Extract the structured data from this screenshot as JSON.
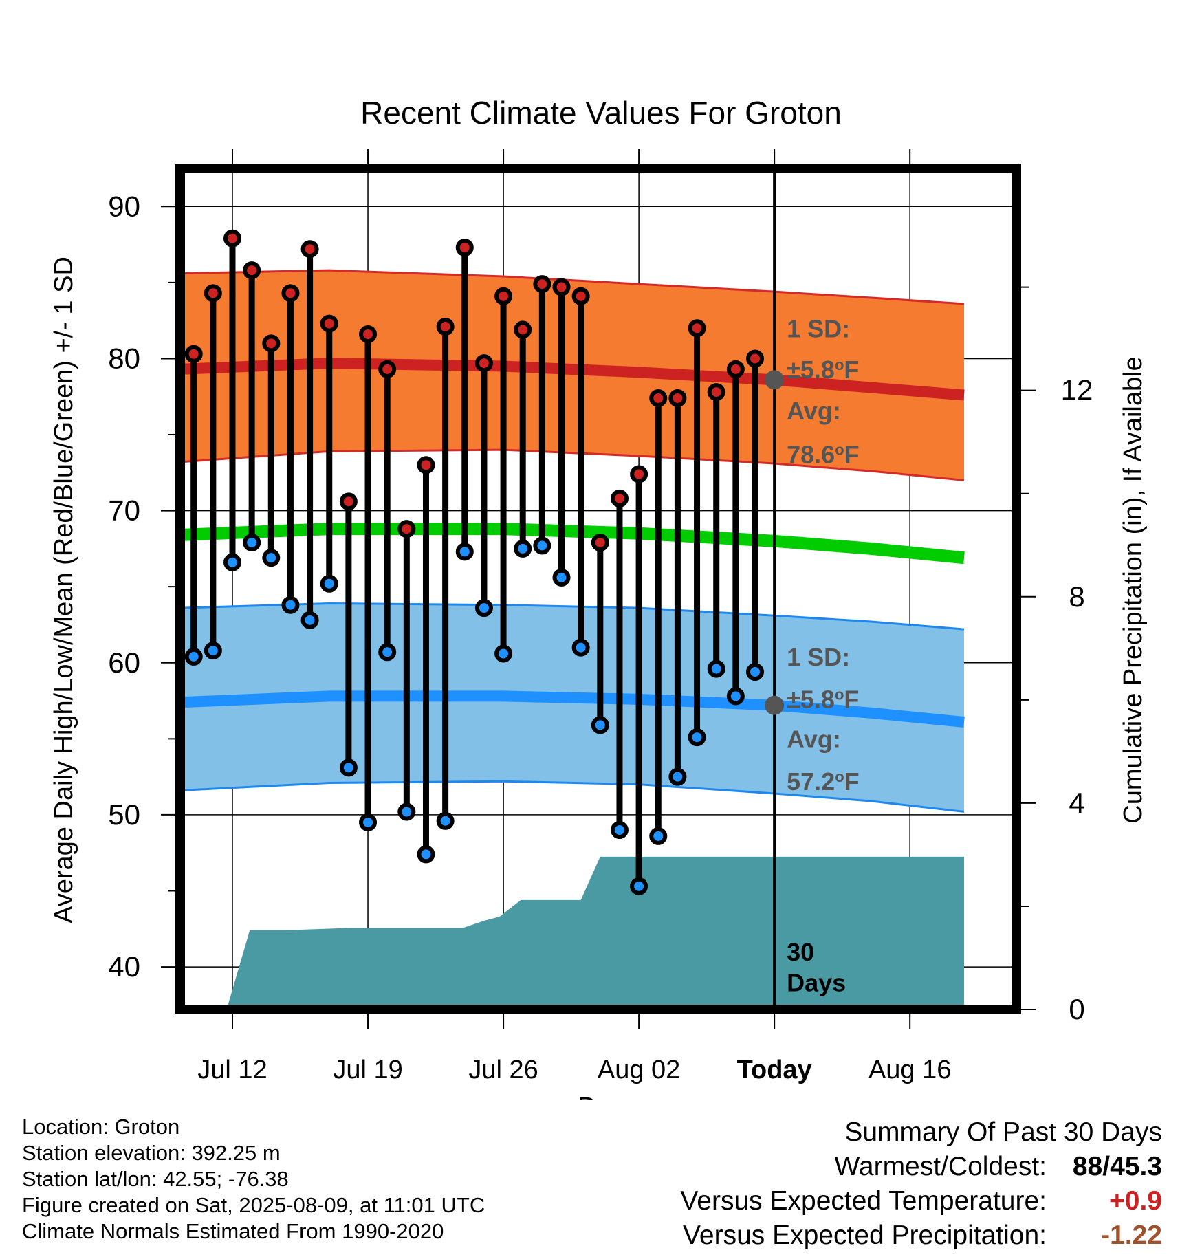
{
  "chart_data": {
    "type": "line",
    "title": "Recent Climate Values For Groton",
    "xlabel": "Day",
    "ylabel": "Average Daily High/Low/Mean (Red/Blue/Green) +/- 1 SD",
    "y2label": "Cumulative Precipitation (in), If Available",
    "ylim": [
      37.2,
      92.5
    ],
    "y2lim": [
      0,
      16.3
    ],
    "xlim": [
      -30.7,
      12.5
    ],
    "yticks": [
      40,
      50,
      60,
      70,
      80,
      90
    ],
    "y2ticks": [
      0,
      4,
      8,
      12
    ],
    "xticks": [
      {
        "day": -28,
        "label": "Jul 12"
      },
      {
        "day": -21,
        "label": "Jul 19"
      },
      {
        "day": -14,
        "label": "Jul 26"
      },
      {
        "day": -7,
        "label": "Aug 02"
      },
      {
        "day": 0,
        "label": "Today"
      },
      {
        "day": 7,
        "label": "Aug 16"
      }
    ],
    "colors": {
      "high_dot": "#cc2222",
      "low_dot": "#1e90ff",
      "high_band": "#f47b30",
      "high_band_edge": "#d42a28",
      "low_band": "#82c0e8",
      "low_band_edge": "#1e88ee",
      "mean_line": "#00cc00",
      "precip": "#4a9aa4",
      "stems": "#000000",
      "annotation": "#555555"
    },
    "days": [
      -30,
      -29,
      -28,
      -27,
      -26,
      -25,
      -24,
      -23,
      -22,
      -21,
      -20,
      -19,
      -18,
      -17,
      -16,
      -15,
      -14,
      -13,
      -12,
      -11,
      -10,
      -9,
      -8,
      -7,
      -6,
      -5,
      -4,
      -3,
      -2,
      -1
    ],
    "highs": [
      80.3,
      84.3,
      87.9,
      85.8,
      81.0,
      84.3,
      87.2,
      82.3,
      70.6,
      81.6,
      79.3,
      68.8,
      73.0,
      82.1,
      87.3,
      79.7,
      84.1,
      81.9,
      84.9,
      84.7,
      84.1,
      67.9,
      70.8,
      72.4,
      77.4,
      77.4,
      82.0,
      77.8,
      79.3,
      80.0
    ],
    "lows": [
      60.4,
      60.8,
      66.6,
      67.9,
      66.9,
      63.8,
      62.8,
      65.2,
      53.1,
      49.5,
      60.7,
      50.2,
      47.4,
      49.6,
      67.3,
      63.6,
      60.6,
      67.5,
      67.7,
      65.6,
      61.0,
      55.9,
      49.0,
      45.3,
      48.6,
      52.5,
      55.1,
      59.6,
      57.8,
      59.4
    ],
    "normals": {
      "days": [
        -30.7,
        -23,
        -14,
        -7,
        0,
        5,
        9.8
      ],
      "avg_high": [
        79.3,
        79.7,
        79.5,
        79.1,
        78.6,
        78.1,
        77.6
      ],
      "high_upper": [
        85.6,
        85.8,
        85.4,
        84.9,
        84.4,
        84.0,
        83.6
      ],
      "high_lower": [
        73.2,
        73.9,
        74.0,
        73.6,
        73.1,
        72.6,
        72.0
      ],
      "avg_low": [
        57.4,
        57.8,
        57.8,
        57.6,
        57.2,
        56.7,
        56.1
      ],
      "low_upper": [
        63.6,
        63.9,
        63.8,
        63.6,
        63.1,
        62.7,
        62.2
      ],
      "low_lower": [
        51.6,
        52.1,
        52.2,
        52.0,
        51.4,
        50.9,
        50.2
      ],
      "mean": [
        68.4,
        68.8,
        68.8,
        68.5,
        68.0,
        67.5,
        66.9
      ]
    },
    "precip": {
      "days": [
        -30.7,
        -28.3,
        -27.1,
        -25,
        -22,
        -19,
        -18,
        -16.1,
        -15,
        -14.2,
        -13.1,
        -11,
        -10,
        -9,
        -8,
        9.8
      ],
      "values": [
        0,
        0,
        1.54,
        1.54,
        1.58,
        1.58,
        1.58,
        1.58,
        1.72,
        1.8,
        2.12,
        2.12,
        2.12,
        2.96,
        2.96,
        2.96
      ]
    },
    "annotations": {
      "high_sd_label": "1 SD:",
      "high_sd_value": "±5.8°F",
      "high_avg_label": "Avg:",
      "high_avg_value": "78.6°F",
      "high_avg": 78.6,
      "low_sd_label": "1 SD:",
      "low_sd_value": "±5.8°F",
      "low_avg_label": "Avg:",
      "low_avg_value": "57.2°F",
      "low_avg": 57.2,
      "days_label_line1": "30",
      "days_label_line2": "Days"
    }
  },
  "info": {
    "location": "Location: Groton",
    "elevation": "Station elevation: 392.25 m",
    "latlon": "Station lat/lon: 42.55; -76.38",
    "created": "Figure created on Sat, 2025-08-09, at 11:01 UTC",
    "normals": "Climate Normals Estimated From 1990-2020"
  },
  "summary": {
    "title": "Summary Of Past 30 Days",
    "warm_cold_label": "Warmest/Coldest:",
    "warm_cold_high": "88",
    "warm_cold_sep": "/",
    "warm_cold_low": "45.3",
    "temp_label": "Versus Expected Temperature:",
    "temp_value": "+0.9",
    "temp_color": "#cc2222",
    "precip_label": "Versus Expected Precipitation:",
    "precip_value": "-1.22",
    "precip_color": "#a0522d"
  }
}
